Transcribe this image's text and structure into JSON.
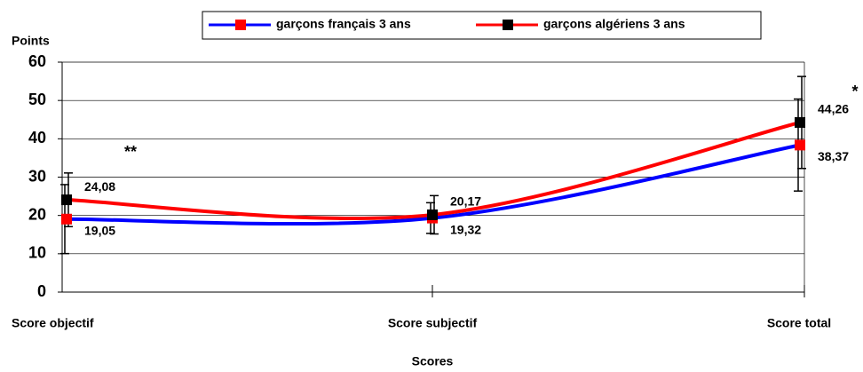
{
  "chart_data": {
    "type": "line",
    "y_axis_label": "Points",
    "x_axis_label": "Scores",
    "categories": [
      "Score objectif",
      "Score subjectif",
      "Score total"
    ],
    "series": [
      {
        "name": "garçons français 3 ans",
        "color": "#0000ff",
        "marker_color": "#ff0000",
        "values": [
          19.05,
          19.32,
          38.37
        ],
        "value_labels": [
          "19,05",
          "19,32",
          "38,37"
        ],
        "errors": [
          9,
          4,
          12
        ]
      },
      {
        "name": "garçons algériens 3 ans",
        "color": "#ff0000",
        "marker_color": "#000000",
        "values": [
          24.08,
          20.17,
          44.26
        ],
        "value_labels": [
          "24,08",
          "20,17",
          "44,26"
        ],
        "errors": [
          7,
          5,
          12
        ]
      }
    ],
    "annotations": [
      "**",
      "",
      "*"
    ],
    "ylim": [
      0,
      60
    ],
    "yticks": [
      0,
      10,
      20,
      30,
      40,
      50,
      60
    ],
    "grid": true
  }
}
